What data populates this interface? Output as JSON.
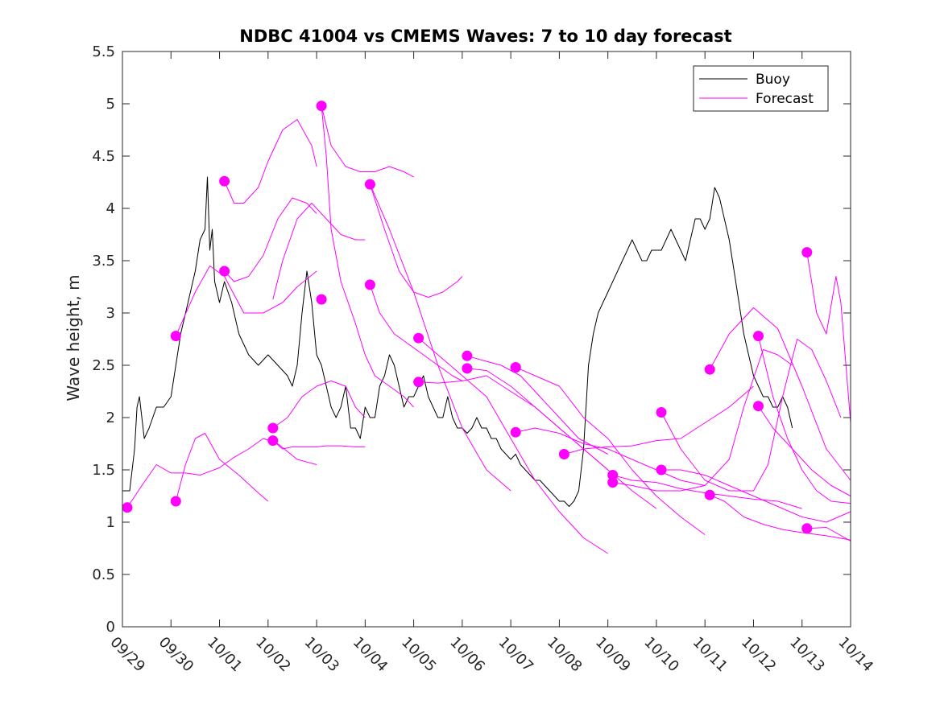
{
  "chart_data": {
    "type": "line",
    "title": "NDBC 41004 vs CMEMS Waves: 7 to 10 day forecast",
    "xlabel": "",
    "ylabel": "Wave height, m",
    "xlim": [
      0,
      15
    ],
    "ylim": [
      0,
      5.5
    ],
    "grid": false,
    "legend_position": "top-right",
    "x_tick_labels": [
      "09/29",
      "09/30",
      "10/01",
      "10/02",
      "10/03",
      "10/04",
      "10/05",
      "10/06",
      "10/07",
      "10/08",
      "10/09",
      "10/10",
      "10/11",
      "10/12",
      "10/13",
      "10/14"
    ],
    "y_ticks": [
      0,
      0.5,
      1,
      1.5,
      2,
      2.5,
      3,
      3.5,
      4,
      4.5,
      5,
      5.5
    ],
    "y_tick_labels": [
      "0",
      "0.5",
      "1",
      "1.5",
      "2",
      "2.5",
      "3",
      "3.5",
      "4",
      "4.5",
      "5",
      "5.5"
    ],
    "legend": [
      {
        "label": "Buoy",
        "color": "#000000"
      },
      {
        "label": "Forecast",
        "color": "#ff00ff"
      }
    ],
    "series": [
      {
        "name": "Buoy",
        "color": "#000000",
        "x": [
          0.0,
          0.15,
          0.25,
          0.3,
          0.35,
          0.45,
          0.55,
          0.7,
          0.85,
          1.0,
          1.1,
          1.2,
          1.35,
          1.5,
          1.6,
          1.7,
          1.75,
          1.8,
          1.85,
          1.9,
          2.0,
          2.1,
          2.25,
          2.4,
          2.6,
          2.8,
          3.0,
          3.2,
          3.4,
          3.5,
          3.6,
          3.7,
          3.8,
          3.9,
          4.0,
          4.1,
          4.2,
          4.3,
          4.4,
          4.5,
          4.6,
          4.7,
          4.8,
          4.9,
          5.0,
          5.1,
          5.2,
          5.3,
          5.4,
          5.5,
          5.6,
          5.7,
          5.8,
          5.9,
          6.0,
          6.1,
          6.2,
          6.3,
          6.4,
          6.5,
          6.6,
          6.7,
          6.8,
          6.9,
          7.0,
          7.1,
          7.2,
          7.3,
          7.4,
          7.5,
          7.6,
          7.7,
          7.8,
          7.9,
          8.0,
          8.1,
          8.2,
          8.3,
          8.4,
          8.5,
          8.6,
          8.7,
          8.8,
          8.9,
          9.0,
          9.1,
          9.2,
          9.3,
          9.4,
          9.5,
          9.6,
          9.7,
          9.8,
          9.9,
          10.0,
          10.1,
          10.2,
          10.3,
          10.4,
          10.5,
          10.6,
          10.7,
          10.8,
          10.9,
          11.0,
          11.1,
          11.2,
          11.3,
          11.4,
          11.5,
          11.6,
          11.7,
          11.8,
          11.9,
          12.0,
          12.1,
          12.2,
          12.3,
          12.4,
          12.5,
          12.6,
          12.7,
          12.8,
          12.9,
          13.0,
          13.1,
          13.2,
          13.3,
          13.4,
          13.5,
          13.6,
          13.7,
          13.8
        ],
        "y": [
          1.3,
          1.3,
          1.7,
          2.1,
          2.2,
          1.8,
          1.9,
          2.1,
          2.1,
          2.2,
          2.5,
          2.8,
          3.1,
          3.4,
          3.7,
          3.8,
          4.3,
          3.6,
          3.8,
          3.3,
          3.1,
          3.3,
          3.1,
          2.8,
          2.6,
          2.5,
          2.6,
          2.5,
          2.4,
          2.3,
          2.5,
          3.0,
          3.4,
          3.1,
          2.6,
          2.5,
          2.3,
          2.1,
          2.0,
          2.1,
          2.3,
          1.9,
          1.9,
          1.8,
          2.1,
          2.0,
          2.0,
          2.3,
          2.4,
          2.6,
          2.5,
          2.3,
          2.1,
          2.2,
          2.2,
          2.3,
          2.4,
          2.2,
          2.1,
          2.0,
          2.0,
          2.2,
          2.0,
          1.9,
          1.9,
          1.85,
          1.9,
          2.0,
          1.9,
          1.9,
          1.8,
          1.8,
          1.7,
          1.65,
          1.6,
          1.65,
          1.55,
          1.5,
          1.45,
          1.4,
          1.4,
          1.35,
          1.3,
          1.25,
          1.2,
          1.2,
          1.15,
          1.2,
          1.3,
          1.7,
          2.5,
          2.8,
          3.0,
          3.1,
          3.2,
          3.3,
          3.4,
          3.5,
          3.6,
          3.7,
          3.6,
          3.5,
          3.5,
          3.6,
          3.6,
          3.6,
          3.7,
          3.8,
          3.7,
          3.6,
          3.5,
          3.7,
          3.9,
          3.9,
          3.8,
          3.9,
          4.2,
          4.1,
          3.9,
          3.7,
          3.4,
          3.1,
          2.8,
          2.6,
          2.4,
          2.3,
          2.2,
          2.2,
          2.1,
          2.1,
          2.2,
          2.1,
          1.9
        ]
      },
      {
        "name": "Forecast",
        "color": "#ff00ff",
        "x": [
          0.1,
          0.4,
          0.7,
          1.0,
          1.3,
          1.6,
          2.0,
          2.3,
          2.6,
          2.9,
          3.2,
          3.6,
          4.0
        ],
        "y": [
          1.14,
          1.35,
          1.55,
          1.47,
          1.47,
          1.45,
          1.52,
          1.62,
          1.7,
          1.8,
          1.75,
          1.6,
          1.55
        ]
      },
      {
        "name": "Forecast",
        "color": "#ff00ff",
        "x": [
          1.1,
          1.5,
          1.8,
          2.1,
          2.5,
          2.9,
          3.3,
          3.6,
          4.0
        ],
        "y": [
          2.78,
          3.2,
          3.45,
          3.35,
          3.0,
          3.0,
          3.1,
          3.25,
          3.4
        ]
      },
      {
        "name": "Forecast",
        "color": "#ff00ff",
        "x": [
          2.1,
          2.3,
          2.5,
          2.8,
          3.0,
          3.3,
          3.6,
          3.9,
          4.0
        ],
        "y": [
          4.26,
          4.05,
          4.05,
          4.2,
          4.45,
          4.75,
          4.85,
          4.6,
          4.4
        ]
      },
      {
        "name": "Forecast",
        "color": "#ff00ff",
        "x": [
          1.1,
          1.3,
          1.5,
          1.7,
          2.0,
          2.4,
          2.8,
          3.0
        ],
        "y": [
          1.2,
          1.55,
          1.8,
          1.85,
          1.6,
          1.45,
          1.28,
          1.2
        ]
      },
      {
        "name": "Forecast",
        "color": "#ff00ff",
        "x": [
          2.1,
          2.3,
          2.6,
          2.9,
          3.2,
          3.5,
          3.8,
          4.0
        ],
        "y": [
          3.4,
          3.3,
          3.35,
          3.55,
          3.9,
          4.1,
          4.05,
          3.95
        ]
      },
      {
        "name": "Forecast",
        "color": "#ff00ff",
        "x": [
          3.1,
          3.3,
          3.5,
          3.8,
          4.0,
          4.2,
          4.5,
          4.8,
          5.0
        ],
        "y": [
          1.78,
          1.7,
          1.72,
          1.72,
          1.72,
          1.73,
          1.73,
          1.72,
          1.72
        ]
      },
      {
        "name": "Forecast",
        "color": "#ff00ff",
        "x": [
          3.1,
          3.4,
          3.7,
          4.0,
          4.3,
          4.6,
          4.8,
          5.0
        ],
        "y": [
          1.9,
          2.0,
          2.2,
          2.3,
          2.35,
          2.3,
          2.1,
          2.0
        ]
      },
      {
        "name": "Forecast",
        "color": "#ff00ff",
        "x": [
          3.1,
          3.3,
          3.6,
          3.9,
          4.2,
          4.5,
          4.8,
          5.0
        ],
        "y": [
          3.13,
          3.5,
          3.9,
          4.05,
          3.9,
          3.75,
          3.7,
          3.7
        ]
      },
      {
        "name": "Forecast",
        "color": "#ff00ff",
        "x": [
          4.1,
          4.3,
          4.6,
          4.9,
          5.2,
          5.5,
          5.8,
          6.0
        ],
        "y": [
          4.98,
          4.6,
          4.4,
          4.35,
          4.35,
          4.4,
          4.35,
          4.3
        ]
      },
      {
        "name": "Forecast",
        "color": "#ff00ff",
        "x": [
          4.1,
          4.2,
          4.3,
          4.5,
          4.8,
          5.0,
          5.2,
          5.5,
          5.8,
          6.0
        ],
        "y": [
          4.98,
          4.5,
          3.8,
          3.3,
          2.9,
          2.6,
          2.4,
          2.3,
          2.2,
          2.1
        ]
      },
      {
        "name": "Forecast",
        "color": "#ff00ff",
        "x": [
          5.1,
          5.4,
          5.7,
          6.0,
          6.3,
          6.6,
          6.9,
          7.0
        ],
        "y": [
          4.23,
          3.8,
          3.4,
          3.2,
          3.15,
          3.2,
          3.3,
          3.35
        ]
      },
      {
        "name": "Forecast",
        "color": "#ff00ff",
        "x": [
          5.1,
          5.3,
          5.6,
          5.9,
          6.2,
          6.5,
          6.8,
          7.0
        ],
        "y": [
          3.27,
          3.0,
          2.8,
          2.7,
          2.6,
          2.5,
          2.4,
          2.35
        ]
      },
      {
        "name": "Forecast",
        "color": "#ff00ff",
        "x": [
          5.1,
          5.5,
          6.0,
          6.5,
          7.0,
          7.5,
          8.0
        ],
        "y": [
          4.23,
          3.8,
          3.2,
          2.5,
          1.9,
          1.5,
          1.3
        ]
      },
      {
        "name": "Forecast",
        "color": "#ff00ff",
        "x": [
          6.1,
          6.5,
          7.0,
          7.5,
          8.0,
          8.5,
          9.0,
          9.5,
          10.0
        ],
        "y": [
          2.76,
          2.6,
          2.4,
          2.2,
          1.8,
          1.4,
          1.1,
          0.85,
          0.7
        ]
      },
      {
        "name": "Forecast",
        "color": "#ff00ff",
        "x": [
          6.1,
          6.5,
          7.0,
          7.5,
          8.0,
          8.5,
          9.0,
          9.5,
          10.0
        ],
        "y": [
          2.34,
          2.33,
          2.35,
          2.4,
          2.25,
          2.1,
          1.9,
          1.7,
          1.5
        ]
      },
      {
        "name": "Forecast",
        "color": "#ff00ff",
        "x": [
          7.1,
          7.4,
          7.8,
          8.2,
          8.6,
          9.0,
          9.4,
          9.8,
          10.0
        ],
        "y": [
          2.59,
          2.55,
          2.5,
          2.4,
          2.2,
          2.0,
          1.8,
          1.7,
          1.65
        ]
      },
      {
        "name": "Forecast",
        "color": "#ff00ff",
        "x": [
          7.1,
          7.5,
          8.0,
          8.5,
          9.0,
          9.5,
          10.0,
          10.5,
          11.0
        ],
        "y": [
          2.47,
          2.45,
          2.3,
          2.1,
          1.9,
          1.7,
          1.5,
          1.3,
          1.13
        ]
      },
      {
        "name": "Forecast",
        "color": "#ff00ff",
        "x": [
          8.1,
          8.5,
          9.0,
          9.5,
          10.0,
          10.5,
          11.0,
          11.5,
          12.0
        ],
        "y": [
          2.48,
          2.4,
          2.3,
          2.0,
          1.8,
          1.5,
          1.25,
          1.05,
          0.88
        ]
      },
      {
        "name": "Forecast",
        "color": "#ff00ff",
        "x": [
          8.1,
          8.5,
          9.0,
          9.5,
          10.0,
          10.5,
          11.0,
          11.5,
          12.0
        ],
        "y": [
          1.86,
          1.9,
          1.85,
          1.75,
          1.7,
          1.6,
          1.5,
          1.4,
          1.35
        ]
      },
      {
        "name": "Forecast",
        "color": "#ff00ff",
        "x": [
          9.1,
          9.5,
          10.0,
          10.5,
          11.0,
          11.5,
          12.0,
          12.5,
          13.0
        ],
        "y": [
          1.65,
          1.7,
          1.72,
          1.73,
          1.78,
          1.8,
          1.95,
          2.1,
          2.3
        ]
      },
      {
        "name": "Forecast",
        "color": "#ff00ff",
        "x": [
          10.1,
          10.5,
          11.0,
          11.5,
          12.0,
          12.5,
          13.0,
          13.5,
          14.0
        ],
        "y": [
          1.45,
          1.4,
          1.38,
          1.32,
          1.28,
          1.25,
          1.22,
          1.2,
          1.13
        ]
      },
      {
        "name": "Forecast",
        "color": "#ff00ff",
        "x": [
          10.1,
          10.5,
          11.0,
          11.5,
          12.0,
          12.5,
          12.8,
          13.2,
          13.5,
          13.8
        ],
        "y": [
          1.38,
          1.35,
          1.3,
          1.3,
          1.35,
          1.6,
          2.1,
          2.65,
          2.6,
          2.5
        ]
      },
      {
        "name": "Forecast",
        "color": "#ff00ff",
        "x": [
          11.1,
          11.5,
          12.0,
          12.5,
          13.0,
          13.3,
          13.6,
          13.9,
          14.2,
          14.5,
          14.8
        ],
        "y": [
          2.05,
          1.7,
          1.4,
          1.3,
          1.3,
          1.55,
          2.2,
          2.75,
          2.65,
          2.35,
          2.0
        ]
      },
      {
        "name": "Forecast",
        "color": "#ff00ff",
        "x": [
          11.1,
          11.5,
          12.0,
          12.5,
          13.0,
          13.5,
          14.0,
          14.5,
          15.0
        ],
        "y": [
          1.5,
          1.5,
          1.45,
          1.35,
          1.25,
          1.15,
          1.05,
          1.0,
          1.1
        ]
      },
      {
        "name": "Forecast",
        "color": "#ff00ff",
        "x": [
          12.1,
          12.5,
          13.0,
          13.5,
          14.0,
          14.5,
          15.0
        ],
        "y": [
          2.46,
          2.8,
          3.05,
          2.85,
          2.3,
          1.7,
          1.4
        ]
      },
      {
        "name": "Forecast",
        "color": "#ff00ff",
        "x": [
          12.1,
          12.4,
          12.8,
          13.2,
          13.6,
          14.0,
          14.5,
          15.0
        ],
        "y": [
          1.26,
          1.2,
          1.05,
          0.98,
          0.93,
          0.9,
          0.87,
          0.83
        ]
      },
      {
        "name": "Forecast",
        "color": "#ff00ff",
        "x": [
          13.1,
          13.4,
          13.7,
          14.0,
          14.3,
          14.6,
          15.0
        ],
        "y": [
          2.78,
          2.2,
          1.8,
          1.5,
          1.3,
          1.2,
          1.18
        ]
      },
      {
        "name": "Forecast",
        "color": "#ff00ff",
        "x": [
          13.1,
          13.4,
          13.8,
          14.2,
          14.6,
          15.0
        ],
        "y": [
          2.11,
          1.9,
          1.7,
          1.5,
          1.35,
          1.25
        ]
      },
      {
        "name": "Forecast",
        "color": "#ff00ff",
        "x": [
          14.1,
          14.3,
          14.5,
          14.7,
          14.8,
          15.0
        ],
        "y": [
          3.58,
          3.0,
          2.8,
          3.35,
          3.1,
          1.95
        ]
      },
      {
        "name": "Forecast",
        "color": "#ff00ff",
        "x": [
          14.1,
          14.5,
          15.0
        ],
        "y": [
          0.94,
          0.95,
          0.82
        ]
      }
    ],
    "markers": {
      "color": "#ff00ff",
      "x": [
        0.1,
        1.1,
        1.1,
        2.1,
        2.1,
        3.1,
        3.1,
        4.1,
        4.1,
        5.1,
        5.1,
        6.1,
        6.1,
        7.1,
        7.1,
        8.1,
        8.1,
        8.1,
        9.1,
        10.1,
        10.1,
        11.1,
        11.1,
        12.1,
        12.1,
        13.1,
        13.1,
        14.1,
        14.1
      ],
      "y": [
        1.14,
        2.78,
        1.2,
        4.26,
        3.4,
        1.9,
        1.78,
        3.13,
        4.98,
        4.23,
        3.27,
        2.76,
        2.34,
        2.59,
        2.47,
        2.48,
        2.48,
        1.86,
        1.65,
        1.45,
        1.38,
        2.05,
        1.5,
        2.46,
        1.26,
        2.78,
        2.11,
        3.58,
        0.94
      ]
    }
  }
}
